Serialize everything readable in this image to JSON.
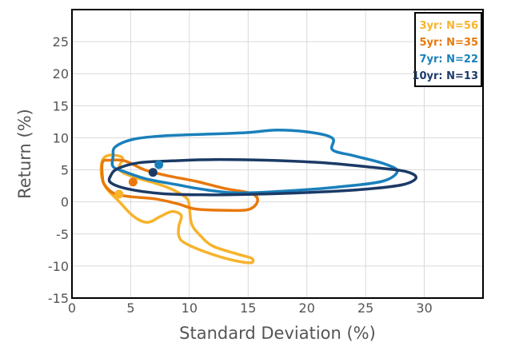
{
  "chart_data": {
    "type": "line",
    "title": "",
    "xlabel": "Standard Deviation (%)",
    "ylabel": "Return (%)",
    "xlim": [
      0,
      35
    ],
    "ylim": [
      -15,
      30
    ],
    "xticks": [
      "0",
      "5",
      "10",
      "15",
      "20",
      "25",
      "30"
    ],
    "xtick_values": [
      0,
      5,
      10,
      15,
      20,
      25,
      30
    ],
    "yticks": [
      "-15",
      "-10",
      "-5",
      "0",
      "5",
      "10",
      "15",
      "20",
      "25"
    ],
    "ytick_values": [
      -15,
      -10,
      -5,
      0,
      5,
      10,
      15,
      20,
      25
    ],
    "grid": true,
    "legend_position": "top-right",
    "series": [
      {
        "name": "3yr: N=56",
        "color": "#f7b32b",
        "point": [
          4,
          1.2
        ],
        "contour": [
          [
            4.3,
            6.9
          ],
          [
            3.2,
            7.3
          ],
          [
            2.6,
            6.5
          ],
          [
            2.5,
            4.3
          ],
          [
            2.9,
            2.2
          ],
          [
            4,
            0.1
          ],
          [
            5.2,
            -2.2
          ],
          [
            6.4,
            -3.2
          ],
          [
            7.5,
            -2.3
          ],
          [
            8.5,
            -1.5
          ],
          [
            9.3,
            -2.1
          ],
          [
            9.1,
            -3.8
          ],
          [
            9.1,
            -5.3
          ],
          [
            9.6,
            -6.4
          ],
          [
            11.5,
            -7.9
          ],
          [
            13.5,
            -9
          ],
          [
            15.2,
            -9.5
          ],
          [
            15.3,
            -8.8
          ],
          [
            14.2,
            -8.2
          ],
          [
            12,
            -6.9
          ],
          [
            10.9,
            -5.2
          ],
          [
            10.2,
            -3.5
          ],
          [
            10,
            -1
          ],
          [
            9.8,
            0.5
          ],
          [
            8.7,
            1.8
          ],
          [
            7.3,
            2.8
          ],
          [
            5.6,
            3.7
          ],
          [
            4.4,
            4.5
          ],
          [
            4,
            5.4
          ],
          [
            4.3,
            6.9
          ]
        ]
      },
      {
        "name": "5yr: N=35",
        "color": "#e8780c",
        "point": [
          5.2,
          3.1
        ],
        "contour": [
          [
            2.6,
            6.2
          ],
          [
            3.2,
            6.5
          ],
          [
            4.5,
            6.4
          ],
          [
            6.2,
            5
          ],
          [
            8.1,
            4.1
          ],
          [
            10.6,
            3.2
          ],
          [
            13,
            2.1
          ],
          [
            15.3,
            1.3
          ],
          [
            15.8,
            0.1
          ],
          [
            15,
            -1.2
          ],
          [
            12.8,
            -1.3
          ],
          [
            10.5,
            -1.1
          ],
          [
            9,
            -0.3
          ],
          [
            7,
            0.5
          ],
          [
            5,
            0.8
          ],
          [
            3.6,
            1.3
          ],
          [
            2.8,
            2.6
          ],
          [
            2.6,
            3.8
          ],
          [
            2.6,
            6.2
          ]
        ]
      },
      {
        "name": "7yr: N=22",
        "color": "#1a80bb",
        "point": [
          7.4,
          5.8
        ],
        "contour": [
          [
            3.5,
            7.1
          ],
          [
            3.7,
            8.6
          ],
          [
            5.3,
            9.8
          ],
          [
            7.8,
            10.3
          ],
          [
            10.5,
            10.5
          ],
          [
            14.8,
            10.8
          ],
          [
            17.5,
            11.2
          ],
          [
            20.5,
            10.8
          ],
          [
            22.2,
            9.9
          ],
          [
            22.2,
            8.1
          ],
          [
            24,
            7.2
          ],
          [
            26.5,
            6
          ],
          [
            27.7,
            4.8
          ],
          [
            26.4,
            3.2
          ],
          [
            22.5,
            2.3
          ],
          [
            18.2,
            1.7
          ],
          [
            14,
            1.4
          ],
          [
            11,
            2
          ],
          [
            8.9,
            2.7
          ],
          [
            6.3,
            3.6
          ],
          [
            4.5,
            4.7
          ],
          [
            3.5,
            5.5
          ],
          [
            3.5,
            7.1
          ]
        ]
      },
      {
        "name": "10yr: N=13",
        "color": "#1b3a66",
        "point": [
          6.9,
          4.6
        ],
        "contour": [
          [
            3.3,
            4.1
          ],
          [
            3.9,
            5.2
          ],
          [
            5.7,
            6.1
          ],
          [
            8.5,
            6.4
          ],
          [
            12,
            6.6
          ],
          [
            16.5,
            6.5
          ],
          [
            21.5,
            6.1
          ],
          [
            25.5,
            5.4
          ],
          [
            28.3,
            4.8
          ],
          [
            29.3,
            3.8
          ],
          [
            28.2,
            2.7
          ],
          [
            25.1,
            2
          ],
          [
            20.5,
            1.5
          ],
          [
            15.6,
            1.2
          ],
          [
            11.2,
            1.1
          ],
          [
            7.6,
            1.3
          ],
          [
            4.8,
            2
          ],
          [
            3.3,
            3
          ],
          [
            3.3,
            4.1
          ]
        ]
      }
    ]
  }
}
